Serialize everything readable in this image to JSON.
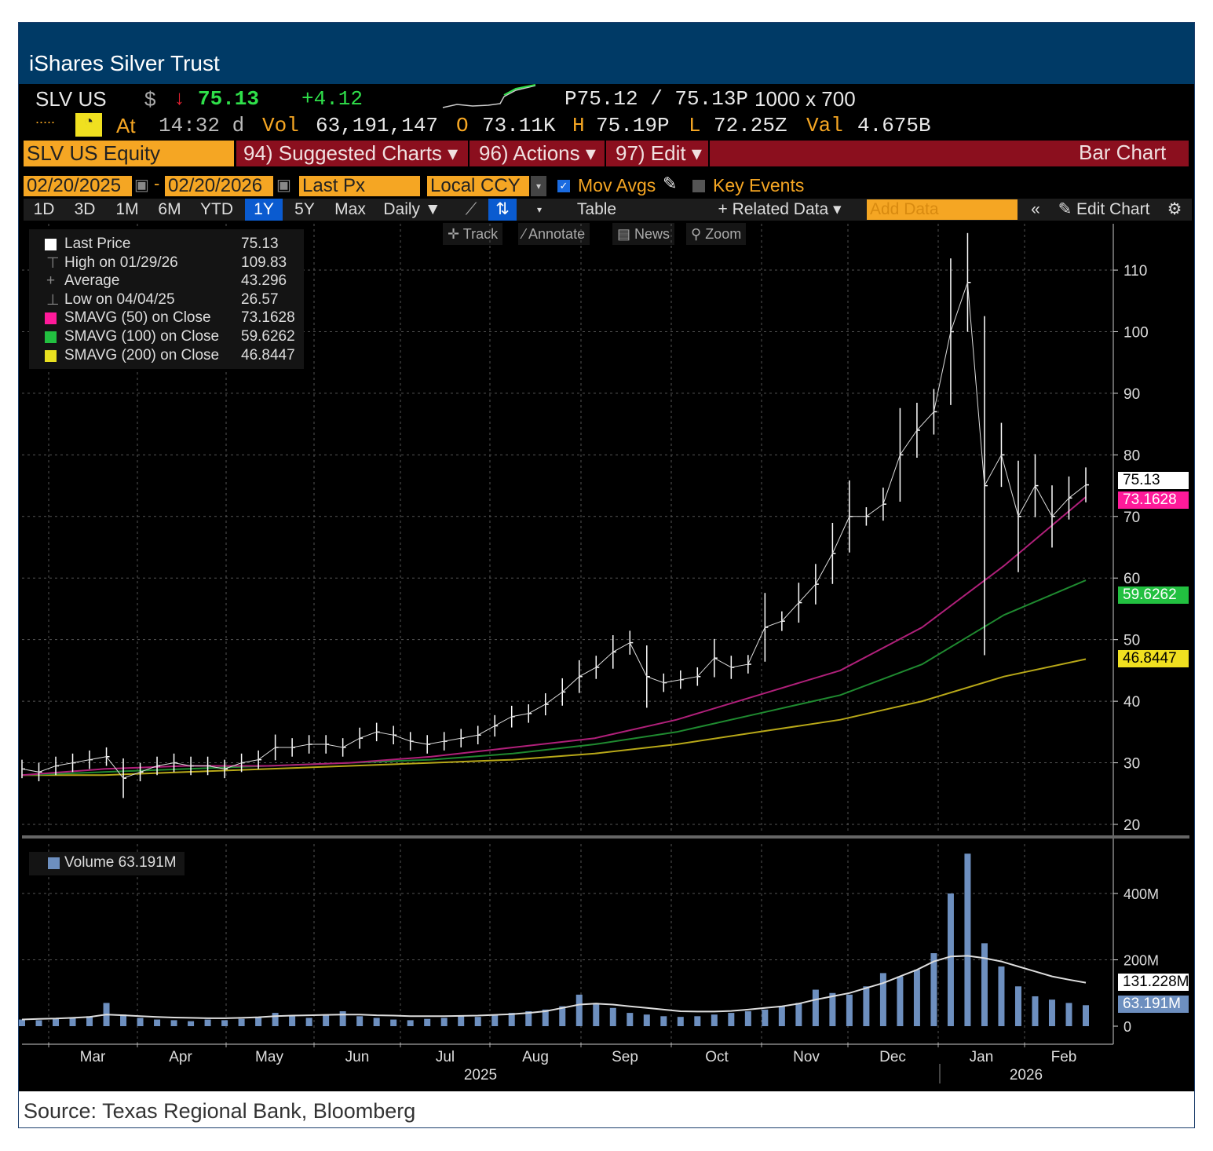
{
  "title": "iShares Silver Trust",
  "quote": {
    "ticker": "SLV US",
    "currency": "$",
    "last": "75.13",
    "change": "+4.12",
    "bid_ask": "P75.12 / 75.13P",
    "size": "1000 x 700",
    "at_label": "At",
    "time": "14:32 d",
    "vol_label": "Vol",
    "volume": "63,191,147",
    "o_label": "O",
    "open": "73.11K",
    "h_label": "H",
    "high": "75.19P",
    "l_label": "L",
    "low": "72.25Z",
    "val_label": "Val",
    "value": "4.675B"
  },
  "menu": {
    "security": "SLV US Equity",
    "suggested": "94) Suggested Charts ▾",
    "actions": "96) Actions ▾",
    "edit": "97) Edit ▾",
    "chart_type": "Bar Chart"
  },
  "controls": {
    "start_date": "02/20/2025",
    "end_date": "02/20/2026",
    "field": "Last Px",
    "currency": "Local CCY",
    "mov_avgs": "Mov Avgs",
    "key_events": "Key Events",
    "ranges": [
      "1D",
      "3D",
      "1M",
      "6M",
      "YTD",
      "1Y",
      "5Y",
      "Max"
    ],
    "selected_range": "1Y",
    "period": "Daily ▼",
    "table": "Table",
    "related": "+ Related Data ▾",
    "add_data_placeholder": "Add Data",
    "edit_chart": "Edit Chart"
  },
  "tools": [
    "Track",
    "Annotate",
    "News",
    "Zoom"
  ],
  "legend": [
    {
      "label": "Last Price",
      "value": "75.13",
      "color": "#ffffff"
    },
    {
      "label": "High on 01/29/26",
      "value": "109.83",
      "color": ""
    },
    {
      "label": "Average",
      "value": "43.296",
      "color": ""
    },
    {
      "label": "Low on 04/04/25",
      "value": "26.57",
      "color": ""
    },
    {
      "label": "SMAVG (50)  on Close",
      "value": "73.1628",
      "color": "#ff1a9a"
    },
    {
      "label": "SMAVG (100)  on Close",
      "value": "59.6262",
      "color": "#22c040"
    },
    {
      "label": "SMAVG (200)  on Close",
      "value": "46.8447",
      "color": "#e8e020"
    }
  ],
  "volume_legend": "Volume 63.191M",
  "badges": {
    "last": "75.13",
    "sma50": "73.1628",
    "sma100": "59.6262",
    "sma200": "46.8447",
    "vol_ma": "131.228M",
    "vol": "63.191M"
  },
  "source": "Source: Texas Regional Bank, Bloomberg",
  "chart_data": {
    "type": "line",
    "title": "SLV US Equity - Bar Chart",
    "x_months": [
      "Mar",
      "Apr",
      "May",
      "Jun",
      "Jul",
      "Aug",
      "Sep",
      "Oct",
      "Nov",
      "Dec",
      "Jan",
      "Feb"
    ],
    "x_years": [
      "2025",
      "2026"
    ],
    "price_ticks": [
      20,
      30,
      40,
      50,
      60,
      70,
      80,
      90,
      100,
      110
    ],
    "price_ylim": [
      20,
      110
    ],
    "volume_tick_labels": [
      "0",
      "200M",
      "400M"
    ],
    "volume_ticks": [
      0,
      200,
      400
    ],
    "volume_ylim": [
      0,
      500
    ],
    "price_weekly": [
      29,
      28.5,
      29.5,
      30,
      30.5,
      31,
      27.5,
      28.5,
      29.5,
      30,
      29.5,
      29.5,
      29,
      30,
      30.5,
      32.5,
      32.5,
      33,
      33,
      32.5,
      34,
      35,
      34.5,
      33.5,
      33,
      33.5,
      34,
      34.5,
      36,
      37.5,
      38,
      39.5,
      41.5,
      44,
      45.5,
      48,
      49.5,
      44,
      43,
      43.5,
      44,
      47,
      45.5,
      46,
      52,
      53,
      56,
      59,
      64,
      70,
      70,
      72,
      80,
      84,
      87,
      100,
      108,
      75,
      80,
      70,
      75,
      70,
      73,
      75.13
    ],
    "sma50": [
      28,
      29,
      29.5,
      29.5,
      30,
      31,
      32.5,
      34,
      37,
      41,
      45,
      52,
      62,
      73.16
    ],
    "sma100": [
      28,
      28.5,
      29,
      29.5,
      30,
      30.5,
      31.5,
      33,
      35,
      38,
      41,
      46,
      54,
      59.63
    ],
    "sma200": [
      28,
      28,
      28.5,
      29,
      29.5,
      30,
      30.5,
      31.5,
      33,
      35,
      37,
      40,
      44,
      46.84
    ],
    "volume_m": [
      20,
      18,
      22,
      25,
      30,
      70,
      35,
      25,
      20,
      18,
      15,
      20,
      18,
      22,
      25,
      40,
      30,
      25,
      35,
      45,
      30,
      25,
      20,
      18,
      22,
      25,
      30,
      28,
      35,
      40,
      45,
      50,
      60,
      95,
      70,
      55,
      40,
      35,
      30,
      28,
      30,
      35,
      40,
      45,
      50,
      60,
      70,
      110,
      100,
      95,
      120,
      160,
      150,
      170,
      220,
      400,
      520,
      250,
      180,
      120,
      90,
      80,
      70,
      63.191
    ],
    "volume_ma_m": [
      20,
      22,
      23,
      25,
      28,
      35,
      33,
      30,
      28,
      26,
      25,
      24,
      24,
      25,
      27,
      30,
      32,
      33,
      34,
      35,
      35,
      33,
      32,
      30,
      30,
      30,
      31,
      32,
      34,
      36,
      40,
      45,
      55,
      65,
      68,
      65,
      60,
      55,
      50,
      45,
      44,
      44,
      46,
      50,
      55,
      60,
      68,
      80,
      90,
      100,
      115,
      130,
      150,
      170,
      195,
      210,
      212,
      205,
      195,
      180,
      165,
      150,
      140,
      131.228
    ]
  }
}
